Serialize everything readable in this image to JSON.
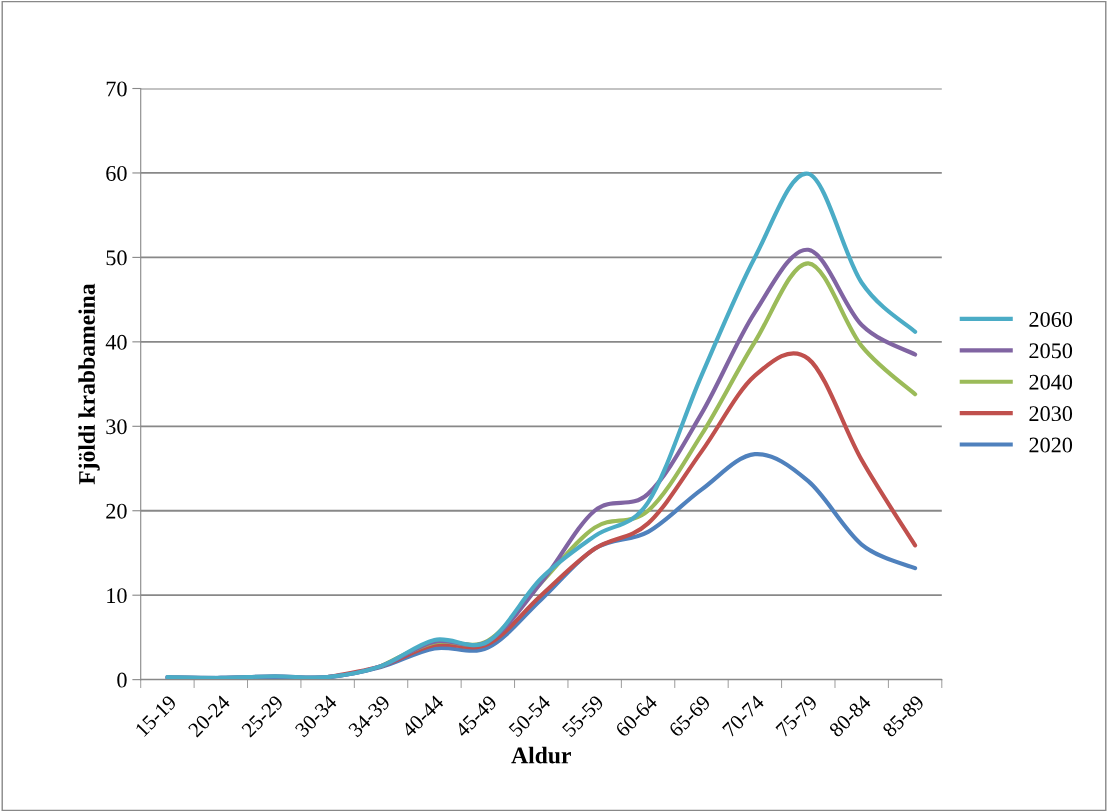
{
  "chart_data": {
    "type": "line",
    "xlabel": "Aldur",
    "ylabel": "Fjöldi krabbameina",
    "categories": [
      "15-19",
      "20-24",
      "25-29",
      "30-34",
      "34-39",
      "40-44",
      "45-49",
      "50-54",
      "55-59",
      "60-64",
      "65-69",
      "70-74",
      "75-79",
      "80-84",
      "85-89"
    ],
    "series": [
      {
        "name": "2060",
        "color": "#4bacc6",
        "values": [
          0.3,
          0.2,
          0.4,
          0.3,
          1.6,
          4.7,
          4.5,
          12,
          17,
          21,
          36,
          50,
          59.9,
          47,
          41.2
        ]
      },
      {
        "name": "2050",
        "color": "#8064a2",
        "values": [
          0.3,
          0.2,
          0.4,
          0.3,
          1.6,
          4.5,
          4.5,
          11.5,
          20,
          22,
          31.5,
          43.5,
          50.9,
          42,
          38.5
        ]
      },
      {
        "name": "2040",
        "color": "#9bbb59",
        "values": [
          null,
          null,
          null,
          null,
          1.6,
          4.4,
          4.6,
          11.5,
          18,
          20,
          29,
          40,
          49.3,
          39.5,
          33.8
        ]
      },
      {
        "name": "2030",
        "color": "#c0504d",
        "values": [
          null,
          null,
          null,
          0.3,
          1.6,
          4.1,
          4.2,
          10,
          15.5,
          18.5,
          27,
          36,
          38,
          26,
          15.9
        ]
      },
      {
        "name": "2020",
        "color": "#4f81bd",
        "values": [
          0.2,
          0.2,
          0.3,
          0.3,
          1.5,
          3.7,
          3.8,
          9.5,
          15.5,
          17.5,
          22.5,
          26.7,
          23.5,
          16,
          13.2
        ]
      }
    ],
    "ylim": [
      0,
      70
    ],
    "yticks": [
      0,
      10,
      20,
      30,
      40,
      50,
      60,
      70
    ],
    "grid": "y",
    "legend": "right",
    "marker": "none",
    "line_style": "solid"
  }
}
